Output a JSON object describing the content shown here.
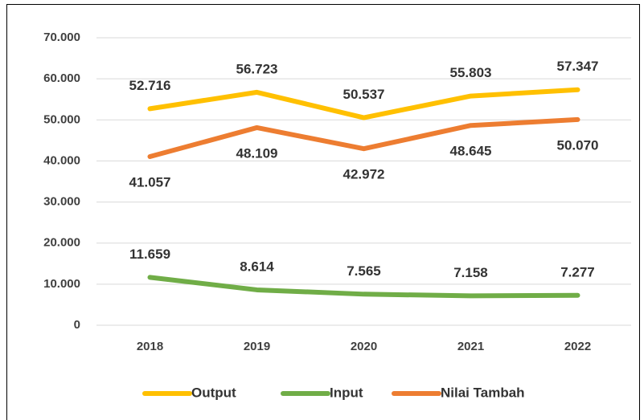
{
  "chart_data": {
    "type": "line",
    "categories": [
      "2018",
      "2019",
      "2020",
      "2021",
      "2022"
    ],
    "series": [
      {
        "name": "Output",
        "color": "#FFC000",
        "values": [
          52716,
          56723,
          50537,
          55803,
          57347
        ],
        "value_labels": [
          "52.716",
          "56.723",
          "50.537",
          "55.803",
          "57.347"
        ],
        "label_position": "above"
      },
      {
        "name": "Input",
        "color": "#70AD47",
        "values": [
          11659,
          8614,
          7565,
          7158,
          7277
        ],
        "value_labels": [
          "11.659",
          "8.614",
          "7.565",
          "7.158",
          "7.277"
        ],
        "label_position": "above"
      },
      {
        "name": "Nilai Tambah",
        "color": "#ED7D31",
        "values": [
          41057,
          48109,
          42972,
          48645,
          50070
        ],
        "value_labels": [
          "41.057",
          "48.109",
          "42.972",
          "48.645",
          "50.070"
        ],
        "label_position": "below"
      }
    ],
    "ylim": [
      0,
      70000
    ],
    "yticks": [
      {
        "value": 0,
        "label": "0"
      },
      {
        "value": 10000,
        "label": "10.000"
      },
      {
        "value": 20000,
        "label": "20.000"
      },
      {
        "value": 30000,
        "label": "30.000"
      },
      {
        "value": 40000,
        "label": "40.000"
      },
      {
        "value": 50000,
        "label": "50.000"
      },
      {
        "value": 60000,
        "label": "60.000"
      },
      {
        "value": 70000,
        "label": "70.000"
      }
    ],
    "grid": true,
    "legend": "bottom"
  }
}
